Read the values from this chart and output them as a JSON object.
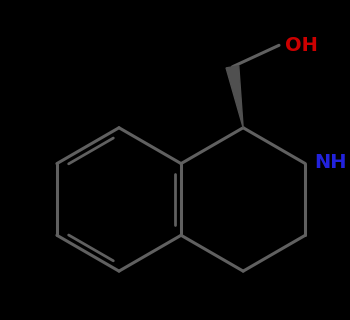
{
  "background_color": "#000000",
  "bond_color": "#606060",
  "nh_color": "#2222dd",
  "oh_color": "#cc0000",
  "bond_width": 2.2,
  "wedge_color": "#505050",
  "fig_width": 3.5,
  "fig_height": 3.2,
  "dpi": 100
}
